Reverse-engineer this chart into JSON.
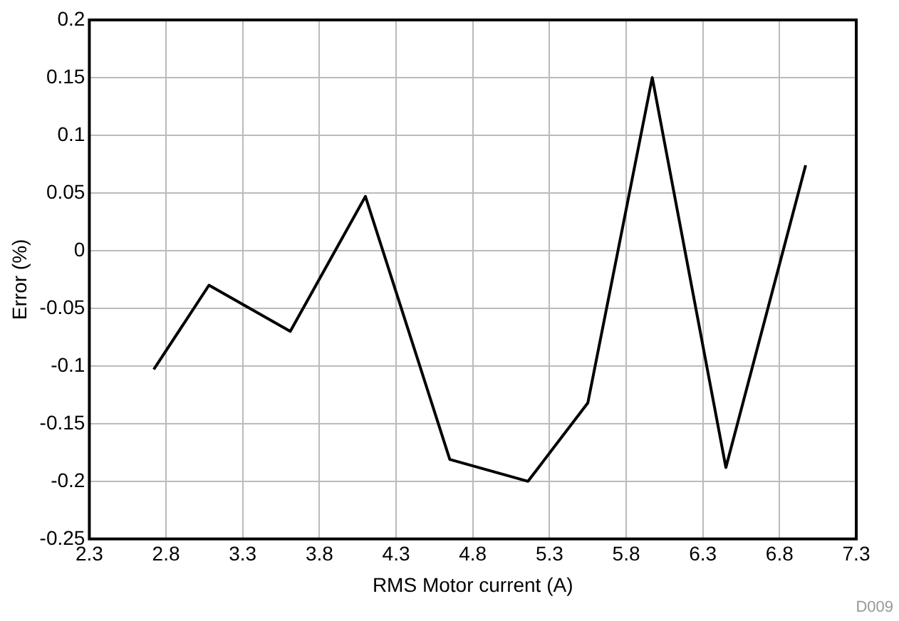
{
  "chart_data": {
    "type": "line",
    "xlabel": "RMS Motor current (A)",
    "ylabel": "Error (%)",
    "annotations": [
      "D009"
    ],
    "x": [
      2.72,
      3.08,
      3.61,
      4.1,
      4.65,
      5.16,
      5.55,
      5.97,
      6.45,
      6.97
    ],
    "series": [
      {
        "color": "#000000",
        "values": [
          -0.103,
          -0.03,
          -0.07,
          0.047,
          -0.181,
          -0.2,
          -0.132,
          0.15,
          -0.188,
          0.074
        ]
      }
    ],
    "xlim": [
      2.3,
      7.3
    ],
    "xticks": [
      2.3,
      2.8,
      3.3,
      3.8,
      4.3,
      4.8,
      5.3,
      5.8,
      6.3,
      6.8,
      7.3
    ],
    "ylim": [
      -0.25,
      0.2
    ],
    "yticks": [
      -0.25,
      -0.2,
      -0.15,
      -0.1,
      -0.05,
      0,
      0.05,
      0.1,
      0.15,
      0.2
    ],
    "grid": true,
    "legend": false,
    "marker": "none",
    "line_style": "solid"
  }
}
